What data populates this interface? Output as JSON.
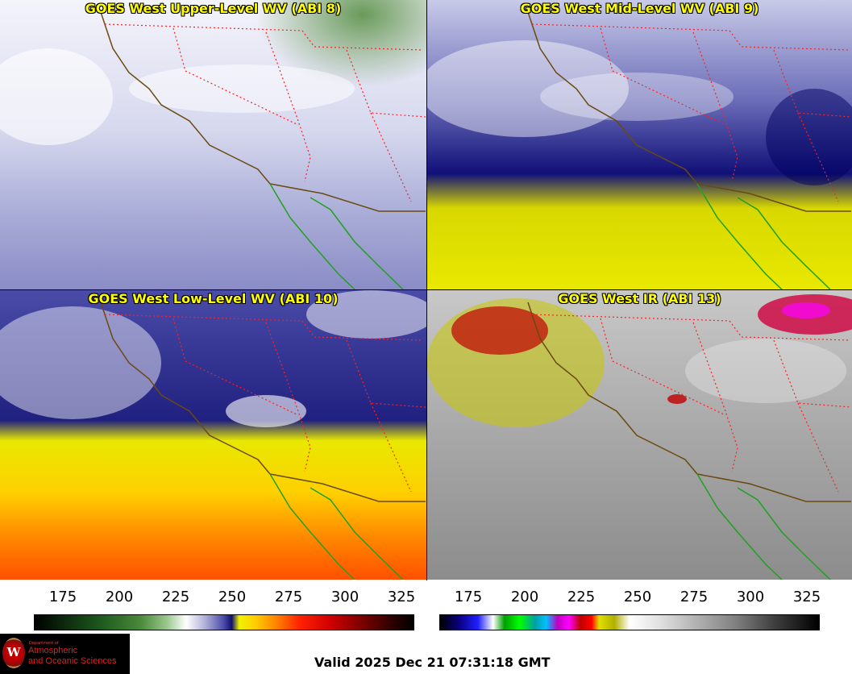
{
  "panels": [
    {
      "title": "GOES West Upper-Level WV (ABI 8)"
    },
    {
      "title": "GOES West Mid-Level WV (ABI 9)"
    },
    {
      "title": "GOES West Low-Level WV (ABI 10)"
    },
    {
      "title": "GOES West IR (ABI 13)"
    }
  ],
  "colorbars": {
    "left": {
      "ticks": [
        "175",
        "200",
        "225",
        "250",
        "275",
        "300",
        "325"
      ]
    },
    "right": {
      "ticks": [
        "175",
        "200",
        "225",
        "250",
        "275",
        "300",
        "325"
      ]
    }
  },
  "logo": {
    "seal_letter": "W",
    "dept": "Department of",
    "line1": "Atmospheric",
    "line2": "and Oceanic Sciences"
  },
  "valid_time": "Valid 2025 Dec 21 07:31:18 GMT",
  "colors": {
    "title_text": "#ffff00",
    "state_borders": "#ff2020",
    "coastline": "#6b4a10",
    "mexico_coast": "#20a020"
  }
}
